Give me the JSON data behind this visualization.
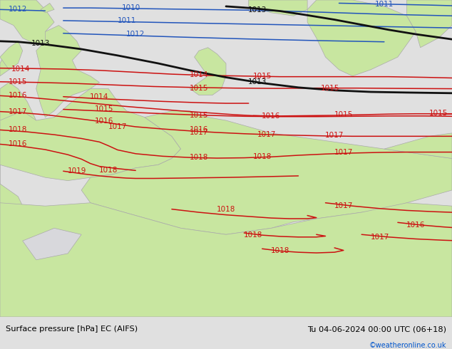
{
  "title_left": "Surface pressure [hPa] EC (AIFS)",
  "title_right": "Tu 04-06-2024 00:00 UTC (06+18)",
  "credit": "©weatheronline.co.uk",
  "bg_color": "#d8d8dc",
  "land_color": "#c8e6a0",
  "coast_color": "#aaaaaa",
  "figsize": [
    6.34,
    4.9
  ],
  "dpi": 100,
  "bottom_bar_color": "#e0e0e0",
  "bottom_bar_height": 0.092
}
